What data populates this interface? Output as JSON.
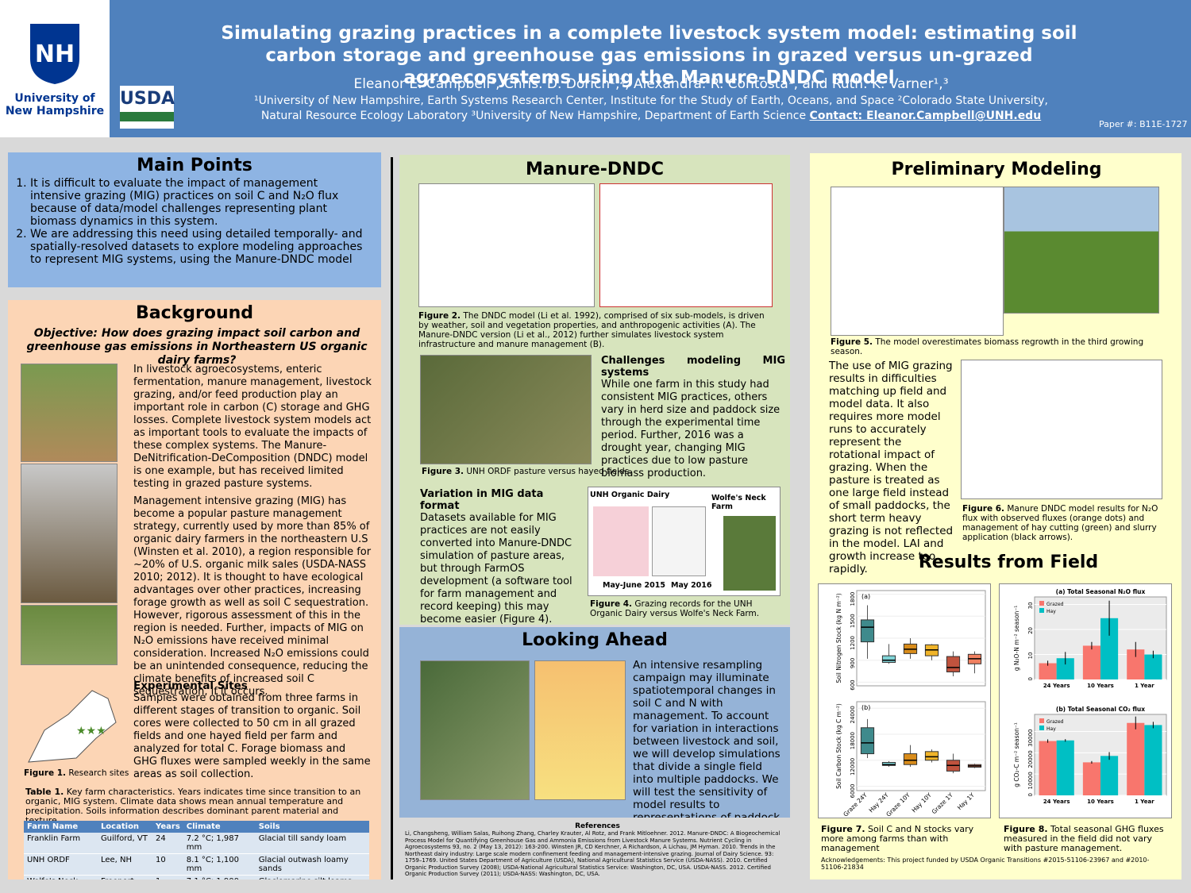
{
  "header": {
    "logo_unh": "University of New Hampshire",
    "logo_usda": "USDA",
    "title": "Simulating grazing practices in a complete livestock system model: estimating soil carbon storage and greenhouse gas emissions in grazed versus un-grazed agroecosystems using the Manure-DNDC model",
    "authors": "Eleanor E. Campbell¹, Chris. D. Dorich¹,², Alexandra. R. Contosta¹, and Ruth. K. Varner¹,³",
    "affiliations": "¹University of New Hampshire, Earth Systems Research Center, Institute for the Study of Earth, Oceans, and Space ²Colorado State University, Natural Resource Ecology Laboratory ³University of New Hampshire, Department of Earth Science",
    "contact": "Contact: Eleanor.Campbell@UNH.edu",
    "paper": "Paper #: B11E-1727"
  },
  "main_points": {
    "heading": "Main Points",
    "items": [
      "It is difficult to evaluate the impact of management intensive grazing (MIG) practices on soil C and N₂O flux because of data/model challenges representing plant biomass dynamics in this system.",
      "We are addressing this need using detailed temporally- and spatially-resolved datasets to explore modeling approaches to represent MIG systems, using the Manure-DNDC model"
    ]
  },
  "background": {
    "heading": "Background",
    "objective": "Objective: How does grazing impact soil carbon and greenhouse gas emissions in Northeastern US organic dairy farms?",
    "paragraphs": [
      "In livestock agroecosystems, enteric fermentation, manure management, livestock grazing, and/or feed production play an important role in carbon (C) storage and GHG losses. Complete livestock system models act as important tools to evaluate the impacts of these complex systems. The Manure-DeNitrification-DeComposition (DNDC) model is one example, but has received limited testing in grazed pasture systems.",
      "Management intensive grazing (MIG) has become a popular pasture management strategy, currently used by more than 85% of organic dairy farmers in the northeastern U.S (Winsten et al. 2010), a region responsible for ~20% of U.S. organic milk sales (USDA-NASS 2010; 2012). It is thought to have ecological advantages over other practices, increasing forage growth as well as soil C sequestration. However, rigorous assessment of this in the region is needed. Further, impacts of MIG on N₂O emissions have received minimal consideration. Increased N₂O emissions could be an unintended consequence, reducing the climate benefits of increased soil C sequestration, if it occurs."
    ],
    "sites_heading": "Experimental Sites",
    "sites_text": "Samples were obtained from three farms in different stages of transition to organic. Soil cores were collected to 50 cm in all grazed fields and one hayed field per farm and analyzed for total C. Forage biomass and GHG fluxes were sampled weekly in the same areas as soil collection.",
    "fig1_label": "Figure 1.",
    "fig1_caption": "Research sites",
    "table_label": "Table 1.",
    "table_caption": "Key farm characteristics. Years indicates time since transition to an organic, MIG system. Climate data shows mean annual temperature and precipitation. Soils information describes dominant parent material and texture.",
    "table": {
      "header": [
        "Farm Name",
        "Location",
        "Years",
        "Climate",
        "Soils"
      ],
      "rows": [
        [
          "Franklin Farm",
          "Guilford, VT",
          "24",
          "7.2 °C; 1,987 mm",
          "Glacial till sandy loam"
        ],
        [
          "UNH ORDF",
          "Lee, NH",
          "10",
          "8.1 °C; 1,100 mm",
          "Glacial outwash loamy sands"
        ],
        [
          "Wolfe's Neck Farm",
          "Freeport, ME",
          "1",
          "7.1 °C; 1,900 mm",
          "Glaciomarine silt loams"
        ]
      ]
    }
  },
  "manure_dndc": {
    "heading": "Manure-DNDC",
    "fig2_label": "Figure 2.",
    "fig2_caption": "The DNDC model (Li et al. 1992), comprised of six sub-models, is driven by weather, soil and vegetation properties, and anthropogenic activities (A). The Manure-DNDC version (Li et al., 2012) further simulates livestock system infrastructure and manure management (B).",
    "challenges_heading": "Challenges modeling MIG systems",
    "challenges_text": "While one farm in this study had consistent MIG practices, others vary in herd size and paddock size through the experimental time period. Further, 2016 was a drought year, changing MIG practices due to low pasture biomass production.",
    "fig3_label": "Figure 3.",
    "fig3_caption": "UNH ORDF pasture versus hayed fields.",
    "variation_heading": "Variation in MIG data format",
    "variation_text": "Datasets available for MIG practices are not easily converted into Manure-DNDC simulation of pasture areas, but through FarmOS development (a software tool for farm management and record keeping) this may become easier (Figure 4).",
    "fig4_titles": [
      "UNH Organic Dairy",
      "Wolfe's Neck Farm"
    ],
    "fig4_dates": [
      "May-June 2015",
      "May 2016"
    ],
    "fig4_label": "Figure 4.",
    "fig4_caption": "Grazing records for the UNH Organic Dairy versus Wolfe's Neck Farm."
  },
  "looking_ahead": {
    "heading": "Looking Ahead",
    "text": "An intensive resampling campaign may illuminate spatiotemporal changes in soil C and N with management. To account for variation in interactions between livestock and soil, we will develop simulations that divide a single field into multiple paddocks. We will test the sensitivity of model results to representations of paddock sizes and locations."
  },
  "references": {
    "heading": "References",
    "text": "Li, Changsheng, William Salas, Ruihong Zhang, Charley Krauter, Al Rotz, and Frank Mitloehner. 2012. Manure-DNDC: A Biogeochemical Process Model for Quantifying Greenhouse Gas and Ammonia Emissions from Livestock Manure Systems. Nutrient Cycling in Agroecosystems 93, no. 2 (May 13, 2012): 163-200. Winsten JR, CD Kerchner, A Richardson, A Lichau, JM Hyman. 2010. Trends in the Northeast dairy industry: Large scale modern confinement feeding and management-intensive grazing. Journal of Dairy Science. 93: 1759–1769. United States Department of Agriculture (USDA), National Agricultural Statistics Service (USDA-NASS). 2010. Certified Organic Production Survey (2008); USDA-National Agricultural Statistics Service: Washington, DC, USA. USDA-NASS. 2012. Certified Organic Production Survey (2011); USDA-NASS: Washington, DC, USA."
  },
  "preliminary": {
    "heading": "Preliminary Modeling Results",
    "fig5_label": "Figure 5.",
    "fig5_caption": "The model overestimates biomass regrowth in the third growing season.",
    "text": "The use of MIG grazing results in difficulties matching up field and model data. It also requires more model runs to accurately represent the rotational impact of grazing. When the pasture is treated as one large field instead of small paddocks, the short term heavy grazing is not reflected in the model. LAI and growth increase too rapidly.",
    "fig6_label": "Figure 6.",
    "fig6_caption": "Manure DNDC model results for N₂O flux with observed fluxes (orange dots) and management of hay cutting (green) and slurry application (black arrows)."
  },
  "results": {
    "heading": "Results from Field Observations",
    "fig7_label": "Figure 7.",
    "fig7_caption": "Soil C and N stocks vary more among farms than with management",
    "fig8_label": "Figure 8.",
    "fig8_caption": "Total seasonal GHG fluxes measured in the field did not vary with pasture management.",
    "acknowledgements": "Acknowledgements: This project funded by USDA Organic Transitions #2015-51106-23967 and #2010-51106-21834"
  },
  "chart_data": [
    {
      "type": "box",
      "panel": "(a)",
      "y_label": "Soil Nitrogen Stock (kg N m⁻²)",
      "categories": [
        "Graze 24Y",
        "Hay 24Y",
        "Graze 10Y",
        "Hay 10Y",
        "Graze 1Y",
        "Hay 1Y"
      ],
      "colors": [
        "#3f8a8c",
        "#7fd3d6",
        "#d98c1a",
        "#f0b429",
        "#c0533e",
        "#f08060"
      ],
      "min": [
        920,
        850,
        920,
        900,
        680,
        720
      ],
      "q1": [
        1150,
        870,
        990,
        960,
        740,
        850
      ],
      "median": [
        1350,
        900,
        1050,
        1040,
        800,
        920
      ],
      "q3": [
        1450,
        960,
        1120,
        1110,
        950,
        980
      ],
      "max": [
        1650,
        1120,
        1200,
        1120,
        1020,
        1020
      ],
      "ylim": [
        550,
        1850
      ],
      "yticks": [
        600,
        900,
        1200,
        1500,
        1800
      ]
    },
    {
      "type": "box",
      "panel": "(b)",
      "y_label": "Soil Carbon Stock (kg C m⁻²)",
      "categories": [
        "Graze 24Y",
        "Hay 24Y",
        "Graze 10Y",
        "Hay 10Y",
        "Graze 1Y",
        "Hay 1Y"
      ],
      "colors": [
        "#3f8a8c",
        "#7fd3d6",
        "#d98c1a",
        "#f0b429",
        "#c0533e",
        "#f08060"
      ],
      "min": [
        12500,
        10500,
        10500,
        11500,
        9000,
        10200
      ],
      "q1": [
        13500,
        10800,
        11000,
        12000,
        9500,
        10400
      ],
      "median": [
        16000,
        11000,
        12000,
        12800,
        10800,
        10700
      ],
      "q3": [
        19500,
        11500,
        13500,
        14000,
        12000,
        11000
      ],
      "max": [
        21500,
        11800,
        15500,
        14500,
        13500,
        11200
      ],
      "ylim": [
        5000,
        25500
      ],
      "yticks": [
        6000,
        12000,
        18000,
        24000
      ]
    },
    {
      "type": "bar",
      "title": "(a) Total Seasonal N₂O flux",
      "y_label": "g N₂O-N m⁻² season⁻¹",
      "categories": [
        "24 Years",
        "10 Years",
        "1 Year"
      ],
      "series": [
        {
          "name": "Grazed",
          "color": "#f8766d",
          "values": [
            6.5,
            13.5,
            12
          ],
          "errors": [
            1,
            1.5,
            3
          ]
        },
        {
          "name": "Hay",
          "color": "#00bfc4",
          "values": [
            8.5,
            24.5,
            10
          ],
          "errors": [
            2.5,
            7,
            1.5
          ]
        }
      ],
      "ylim": [
        0,
        33
      ],
      "yticks": [
        0,
        10,
        20,
        30
      ]
    },
    {
      "type": "bar",
      "title": "(b) Total Seasonal CO₂ flux",
      "y_label": "g CO₂-C m⁻² season⁻¹",
      "categories": [
        "24 Years",
        "10 Years",
        "1 Year"
      ],
      "series": [
        {
          "name": "Grazed",
          "color": "#f8766d",
          "values": [
            25500,
            15500,
            34000
          ],
          "errors": [
            800,
            600,
            3000
          ]
        },
        {
          "name": "Hay",
          "color": "#00bfc4",
          "values": [
            25800,
            18500,
            33000
          ],
          "errors": [
            600,
            1800,
            1500
          ]
        }
      ],
      "ylim": [
        0,
        38000
      ],
      "yticks": [
        0,
        10000,
        20000,
        30000
      ]
    }
  ]
}
